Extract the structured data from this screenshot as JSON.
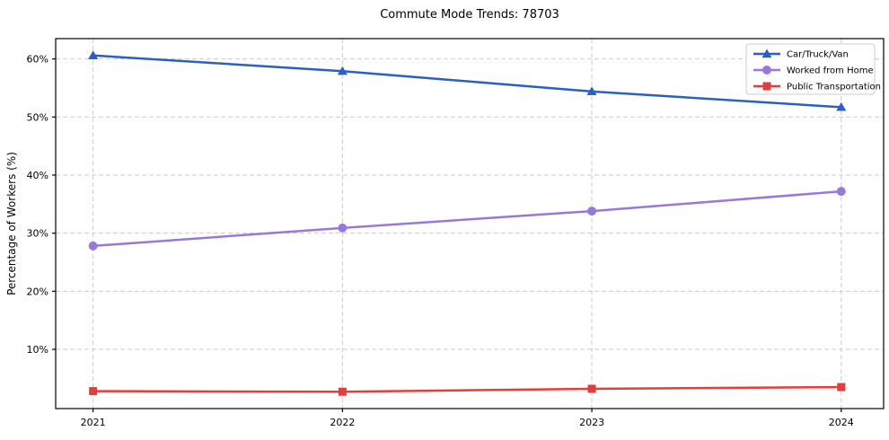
{
  "title": "Commute Mode Trends: 78703",
  "chart_data": {
    "type": "line",
    "title": "Commute Mode Trends: 78703",
    "xlabel": "",
    "ylabel": "Percentage of Workers (%)",
    "x": [
      2021,
      2022,
      2023,
      2024
    ],
    "xtick_labels": [
      "2021",
      "2022",
      "2023",
      "2024"
    ],
    "yticks": [
      10,
      20,
      30,
      40,
      50,
      60
    ],
    "ytick_labels": [
      "10%",
      "20%",
      "30%",
      "40%",
      "50%",
      "60%"
    ],
    "xlim": [
      2020.85,
      2024.17
    ],
    "ylim": [
      -0.2,
      63.5
    ],
    "grid": true,
    "grid_style": "dashed",
    "grid_color": "#cccccc",
    "spine_color": "#000000",
    "background_color": "#ffffff",
    "legend_position": "upper right",
    "series": [
      {
        "name": "Car/Truck/Van",
        "values": [
          60.6,
          57.9,
          54.4,
          51.7
        ],
        "color": "#2b5fc2",
        "marker": "triangle"
      },
      {
        "name": "Worked from Home",
        "values": [
          27.8,
          30.9,
          33.8,
          37.2
        ],
        "color": "#9878d8",
        "marker": "circle"
      },
      {
        "name": "Public Transportation",
        "values": [
          2.8,
          2.7,
          3.2,
          3.5
        ],
        "color": "#e23e3e",
        "marker": "square"
      }
    ]
  }
}
